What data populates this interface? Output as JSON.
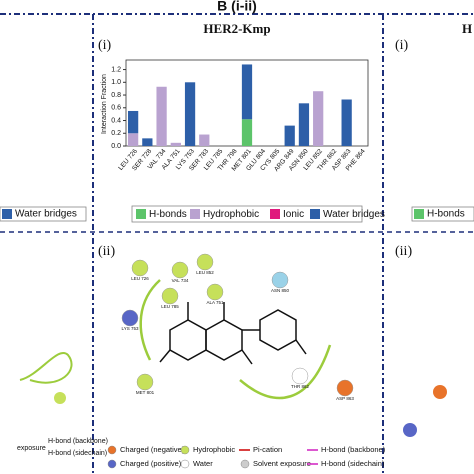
{
  "chart_data": {
    "type": "bar",
    "header": "B (i-ii)",
    "title": "HER2-Kmp",
    "panel_i": "(i)",
    "panel_ii": "(ii)",
    "ylabel": "Interaction Fraction",
    "categories": [
      "LEU 726",
      "SER 728",
      "VAL 734",
      "ALA 751",
      "LYS 753",
      "SER 783",
      "LEU 785",
      "THR 798",
      "MET 801",
      "GLU 804",
      "CYS 805",
      "ARG 849",
      "ASN 850",
      "LEU 852",
      "THR 862",
      "ASP 863",
      "PHE 864"
    ],
    "series": [
      {
        "name": "H-bonds",
        "color": "#5cc46a",
        "values": [
          0,
          0,
          0,
          0,
          0,
          0,
          0,
          0,
          0.42,
          0,
          0,
          0,
          0,
          0,
          0,
          0,
          0
        ]
      },
      {
        "name": "Hydrophobic",
        "color": "#b9a2d0",
        "values": [
          0.2,
          0,
          0.93,
          0.05,
          0,
          0.18,
          0,
          0,
          0,
          0,
          0,
          0,
          0,
          0.86,
          0,
          0,
          0
        ]
      },
      {
        "name": "Ionic",
        "color": "#e0197d",
        "values": [
          0,
          0,
          0,
          0,
          0,
          0,
          0,
          0,
          0,
          0,
          0,
          0,
          0,
          0,
          0,
          0,
          0
        ]
      },
      {
        "name": "Water bridges",
        "color": "#2d5fa8",
        "values": [
          0.35,
          0.12,
          0,
          0,
          1.0,
          0,
          0,
          0,
          0.86,
          0,
          0,
          0.32,
          0.67,
          0,
          0,
          0.73,
          0
        ]
      }
    ],
    "ylim": [
      0,
      1.35
    ],
    "yticks": [
      {
        "value": 0,
        "label": "0.0"
      },
      {
        "value": 0.2,
        "label": "0.2"
      },
      {
        "value": 0.4,
        "label": "0.4"
      },
      {
        "value": 0.6,
        "label": "0.6"
      },
      {
        "value": 0.8,
        "label": "0.8"
      },
      {
        "value": 1.0,
        "label": "1.0"
      },
      {
        "value": 1.2,
        "label": "1.2"
      }
    ],
    "diagram": {
      "nodes": [
        "LEU 726",
        "VAL 734",
        "LEU 852",
        "ALA 751",
        "LEU 785",
        "ASN 850",
        "LYS 753",
        "ASP 863",
        "THR 862",
        "MET 801"
      ],
      "legend": [
        "Charged (negative)",
        "Charged (positive)",
        "Hydrophobic",
        "Water",
        "Pi-cation",
        "Solvent exposure",
        "H-bond (backbone)",
        "H-bond (sidechain)"
      ]
    },
    "left_panel": {
      "legend_fragment": "Water bridges",
      "hbond_backbone": "H-bond (backbone)",
      "hbond_sidechain": "H-bond (sidechain)",
      "exposure": "exposure"
    },
    "right_panel": {
      "title": "H",
      "panel_i": "(i)",
      "legend_fragment": "H-bonds",
      "panel_ii": "(ii)"
    }
  }
}
